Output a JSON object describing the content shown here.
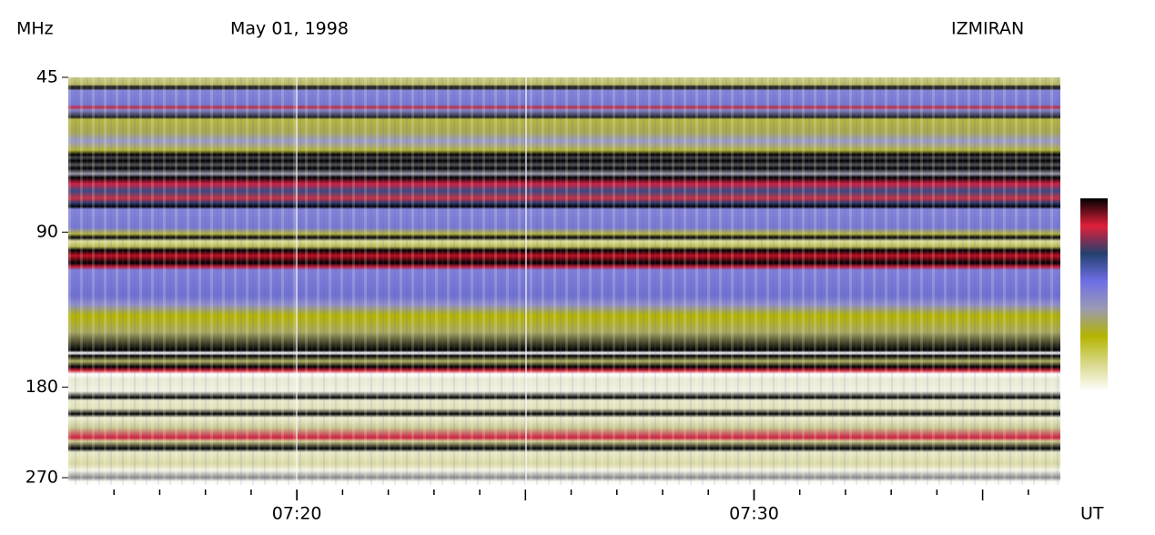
{
  "chart_data": {
    "type": "spectrogram",
    "title": "May 01, 1998",
    "source": "IZMIRAN",
    "ylabel": "MHz",
    "xlabel": "UT",
    "yscale": "log",
    "ylim": [
      45,
      270
    ],
    "yticks": [
      45,
      90,
      180,
      270
    ],
    "xlim": [
      435,
      456.7
    ],
    "xticks": [
      {
        "value": 440,
        "label": "07:20"
      },
      {
        "value": 450,
        "label": "07:30"
      }
    ],
    "xminor_ticks": [
      436,
      437,
      438,
      439,
      440,
      441,
      442,
      443,
      444,
      445,
      446,
      447,
      448,
      449,
      450,
      451,
      452,
      453,
      454,
      455,
      456
    ],
    "colorscale": [
      "#000000",
      "#e0203a",
      "#24406e",
      "#6e6ee6",
      "#9a9ab4",
      "#b4b400",
      "#d8d88a",
      "#ffffff"
    ]
  }
}
